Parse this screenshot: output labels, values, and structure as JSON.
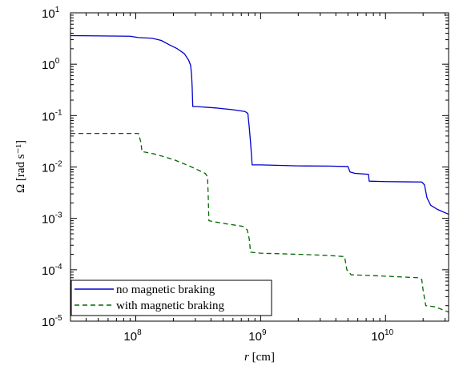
{
  "chart_data": {
    "type": "line",
    "x_scale": "log",
    "y_scale": "log",
    "xlim": [
      30000000,
      32000000000
    ],
    "ylim": [
      1e-05,
      10
    ],
    "xlabel": "r [cm]",
    "ylabel": "Ω [rad s⁻¹]",
    "x_ticks": [
      {
        "value": 100000000,
        "base": "10",
        "exp": "8"
      },
      {
        "value": 1000000000,
        "base": "10",
        "exp": "9"
      },
      {
        "value": 10000000000,
        "base": "10",
        "exp": "10"
      }
    ],
    "y_ticks": [
      {
        "value": 10,
        "base": "10",
        "exp": "1"
      },
      {
        "value": 1,
        "base": "10",
        "exp": "0"
      },
      {
        "value": 0.1,
        "base": "10",
        "exp": "-1"
      },
      {
        "value": 0.01,
        "base": "10",
        "exp": "-2"
      },
      {
        "value": 0.001,
        "base": "10",
        "exp": "-3"
      },
      {
        "value": 0.0001,
        "base": "10",
        "exp": "-4"
      },
      {
        "value": 1e-05,
        "base": "10",
        "exp": "-5"
      }
    ],
    "grid": false,
    "legend_position": "bottom-left",
    "series": [
      {
        "name": "no magnetic braking",
        "color": "#0000cc",
        "dash": "solid",
        "points": [
          [
            30000000,
            3.6
          ],
          [
            90000000,
            3.5
          ],
          [
            105000000,
            3.3
          ],
          [
            135000000,
            3.2
          ],
          [
            160000000,
            2.9
          ],
          [
            185000000,
            2.4
          ],
          [
            215000000,
            2.0
          ],
          [
            245000000,
            1.6
          ],
          [
            265000000,
            1.2
          ],
          [
            275000000,
            0.95
          ],
          [
            280000000,
            0.6
          ],
          [
            283000000,
            0.35
          ],
          [
            286000000,
            0.15
          ],
          [
            305000000,
            0.15
          ],
          [
            450000000,
            0.14
          ],
          [
            600000000,
            0.13
          ],
          [
            750000000,
            0.12
          ],
          [
            790000000,
            0.11
          ],
          [
            810000000,
            0.06
          ],
          [
            830000000,
            0.03
          ],
          [
            855000000,
            0.011
          ],
          [
            1000000000,
            0.011
          ],
          [
            2000000000,
            0.0105
          ],
          [
            3500000000,
            0.0104
          ],
          [
            5000000000,
            0.0102
          ],
          [
            5200000000,
            0.008
          ],
          [
            5700000000,
            0.0075
          ],
          [
            7300000000,
            0.0072
          ],
          [
            7400000000,
            0.0053
          ],
          [
            10000000000,
            0.0052
          ],
          [
            19500000000,
            0.0051
          ],
          [
            20500000000,
            0.0045
          ],
          [
            21500000000,
            0.0025
          ],
          [
            23000000000,
            0.0018
          ],
          [
            26000000000,
            0.0015
          ],
          [
            32000000000,
            0.0012
          ]
        ]
      },
      {
        "name": "with magnetic braking",
        "color": "#006600",
        "dash": "dashed",
        "points": [
          [
            30000000,
            0.045
          ],
          [
            105000000,
            0.045
          ],
          [
            110000000,
            0.03
          ],
          [
            112000000,
            0.02
          ],
          [
            140000000,
            0.018
          ],
          [
            200000000,
            0.014
          ],
          [
            280000000,
            0.01
          ],
          [
            360000000,
            0.0075
          ],
          [
            375000000,
            0.0065
          ],
          [
            380000000,
            0.003
          ],
          [
            385000000,
            0.0009
          ],
          [
            500000000,
            0.0008
          ],
          [
            720000000,
            0.0007
          ],
          [
            780000000,
            0.0006
          ],
          [
            810000000,
            0.0004
          ],
          [
            830000000,
            0.00022
          ],
          [
            1000000000,
            0.00021
          ],
          [
            2000000000,
            0.0002
          ],
          [
            3500000000,
            0.00019
          ],
          [
            4700000000,
            0.00018
          ],
          [
            4900000000,
            0.0001
          ],
          [
            5300000000,
            8e-05
          ],
          [
            10000000000,
            7.5e-05
          ],
          [
            18000000000,
            7e-05
          ],
          [
            19500000000,
            6.5e-05
          ],
          [
            20000000000,
            4e-05
          ],
          [
            21000000000,
            2e-05
          ],
          [
            25000000000,
            1.9e-05
          ],
          [
            32000000000,
            1.5e-05
          ]
        ]
      }
    ]
  }
}
